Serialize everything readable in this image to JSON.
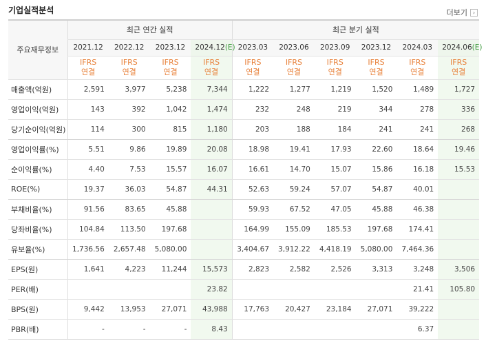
{
  "header": {
    "title": "기업실적분석",
    "more_label": "더보기",
    "more_icon": "chevron-right-icon"
  },
  "table": {
    "label_header": "주요재무정보",
    "group_annual": "최근 연간 실적",
    "group_quarter": "최근 분기 실적",
    "periods": [
      "2021.12",
      "2022.12",
      "2023.12",
      "2024.12(E)",
      "2023.03",
      "2023.06",
      "2023.09",
      "2023.12",
      "2024.03",
      "2024.06(E)"
    ],
    "estimate_flags": [
      false,
      false,
      false,
      true,
      false,
      false,
      false,
      false,
      false,
      true
    ],
    "basis_top": "IFRS",
    "basis_bottom": "연결",
    "rows": [
      {
        "label": "매출액(억원)",
        "values": [
          "2,591",
          "3,977",
          "5,238",
          "7,344",
          "1,222",
          "1,277",
          "1,219",
          "1,520",
          "1,489",
          "1,727"
        ]
      },
      {
        "label": "영업이익(억원)",
        "values": [
          "143",
          "392",
          "1,042",
          "1,474",
          "232",
          "248",
          "219",
          "344",
          "278",
          "336"
        ]
      },
      {
        "label": "당기순이익(억원)",
        "values": [
          "114",
          "300",
          "815",
          "1,180",
          "203",
          "188",
          "184",
          "241",
          "241",
          "268"
        ]
      },
      {
        "label": "영업이익률(%)",
        "values": [
          "5.51",
          "9.86",
          "19.89",
          "20.08",
          "18.98",
          "19.41",
          "17.93",
          "22.60",
          "18.64",
          "19.46"
        ]
      },
      {
        "label": "순이익률(%)",
        "values": [
          "4.40",
          "7.53",
          "15.57",
          "16.07",
          "16.61",
          "14.70",
          "15.07",
          "15.86",
          "16.18",
          "15.53"
        ]
      },
      {
        "label": "ROE(%)",
        "values": [
          "19.37",
          "36.03",
          "54.87",
          "44.31",
          "52.63",
          "59.24",
          "57.07",
          "54.87",
          "40.01",
          ""
        ]
      },
      {
        "label": "부채비율(%)",
        "values": [
          "91.56",
          "83.65",
          "45.88",
          "",
          "59.93",
          "67.52",
          "47.05",
          "45.88",
          "46.38",
          ""
        ]
      },
      {
        "label": "당좌비율(%)",
        "values": [
          "104.84",
          "113.50",
          "197.68",
          "",
          "164.99",
          "155.09",
          "185.53",
          "197.68",
          "174.41",
          ""
        ]
      },
      {
        "label": "유보율(%)",
        "values": [
          "1,736.56",
          "2,657.48",
          "5,080.00",
          "",
          "3,404.67",
          "3,912.22",
          "4,418.19",
          "5,080.00",
          "7,464.36",
          ""
        ]
      },
      {
        "label": "EPS(원)",
        "values": [
          "1,641",
          "4,223",
          "11,244",
          "15,573",
          "2,823",
          "2,582",
          "2,526",
          "3,313",
          "3,248",
          "3,506"
        ]
      },
      {
        "label": "PER(배)",
        "values": [
          "",
          "",
          "",
          "23.82",
          "",
          "",
          "",
          "",
          "21.41",
          "105.80"
        ]
      },
      {
        "label": "BPS(원)",
        "values": [
          "9,442",
          "13,953",
          "27,071",
          "43,988",
          "17,763",
          "20,427",
          "23,184",
          "27,071",
          "39,222",
          ""
        ]
      },
      {
        "label": "PBR(배)",
        "values": [
          "-",
          "-",
          "-",
          "8.43",
          "",
          "",
          "",
          "",
          "6.37",
          ""
        ]
      }
    ],
    "group_breaks_after": [
      2,
      5,
      8,
      12
    ]
  }
}
